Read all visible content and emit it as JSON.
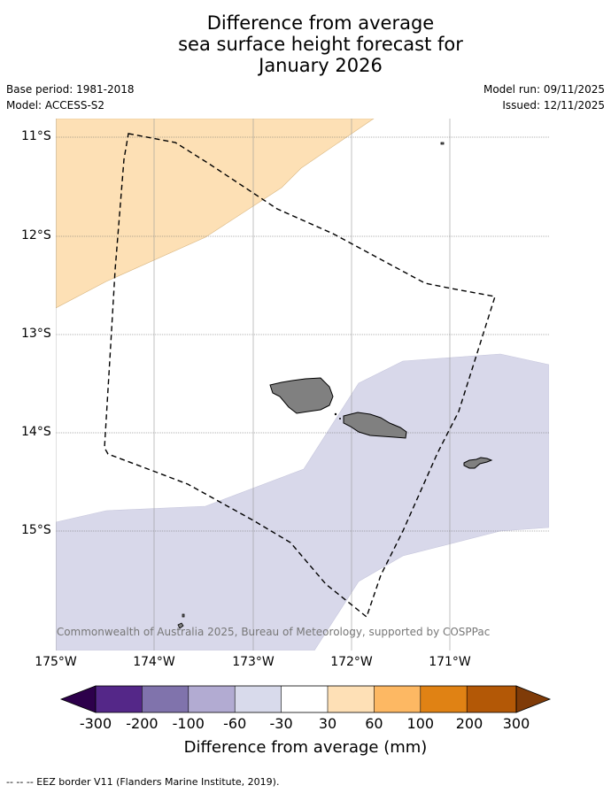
{
  "title": {
    "line1": "Difference from average",
    "line2": "sea surface height forecast for",
    "line3": "January 2026"
  },
  "meta": {
    "base_period": "Base period: 1981-2018",
    "model": "Model: ACCESS-S2",
    "model_run": "Model run: 09/11/2025",
    "issued": "Issued: 12/11/2025"
  },
  "map": {
    "lat_labels": [
      "11°S",
      "12°S",
      "13°S",
      "14°S",
      "15°S"
    ],
    "lon_labels": [
      "175°W",
      "174°W",
      "173°W",
      "172°W",
      "171°W"
    ],
    "copyright": "© Commonwealth of Australia 2025, Bureau of Meteorology, supported by COSPPac",
    "land_color": "#808080",
    "positive_anomaly_color": "#fde0b5",
    "negative_anomaly_color": "#d8d8ea"
  },
  "colorbar": {
    "labels": [
      "-300",
      "-200",
      "-100",
      "-60",
      "-30",
      "30",
      "60",
      "100",
      "200",
      "300"
    ],
    "colors": [
      "#2d004b",
      "#542788",
      "#8073ac",
      "#b2abd2",
      "#d8daeb",
      "#ffffff",
      "#fee0b6",
      "#fdb863",
      "#e08214",
      "#b35806",
      "#7f3b08"
    ],
    "title": "Difference from average (mm)"
  },
  "footer": {
    "legend": "--  --  -- EEZ border V11 (Flanders Marine Institute, 2019)."
  }
}
